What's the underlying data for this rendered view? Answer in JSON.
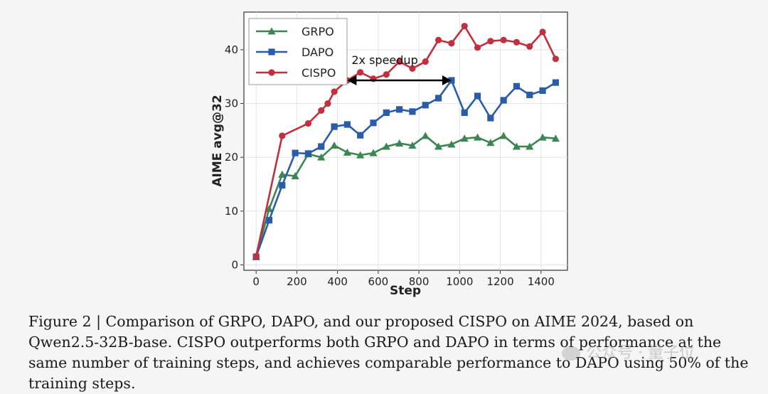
{
  "chart_data": {
    "type": "line",
    "xlabel": "Step",
    "ylabel": "AIME avg@32",
    "xlim": [
      -60,
      1530
    ],
    "ylim": [
      -1,
      47
    ],
    "xticks": [
      0,
      200,
      400,
      600,
      800,
      1000,
      1200,
      1400
    ],
    "yticks": [
      0,
      10,
      20,
      30,
      40
    ],
    "grid": true,
    "legend_position": "top-left",
    "series": [
      {
        "name": "GRPO",
        "color": "#3e8554",
        "marker": "triangle",
        "x": [
          0,
          64,
          128,
          192,
          256,
          320,
          384,
          448,
          512,
          576,
          640,
          704,
          768,
          832,
          896,
          960,
          1024,
          1088,
          1152,
          1216,
          1280,
          1344,
          1408,
          1472
        ],
        "y": [
          1.5,
          10.4,
          16.8,
          16.5,
          20.6,
          20.0,
          22.2,
          20.9,
          20.4,
          20.8,
          22.0,
          22.6,
          22.2,
          24.0,
          22.0,
          22.4,
          23.5,
          23.7,
          22.7,
          24.0,
          22.0,
          22.0,
          23.7,
          23.5
        ]
      },
      {
        "name": "DAPO",
        "color": "#2a5caa",
        "marker": "square",
        "x": [
          0,
          64,
          128,
          192,
          256,
          320,
          384,
          448,
          512,
          576,
          640,
          704,
          768,
          832,
          896,
          960,
          1024,
          1088,
          1152,
          1216,
          1280,
          1344,
          1408,
          1472
        ],
        "y": [
          1.5,
          8.3,
          14.8,
          20.8,
          20.7,
          22.0,
          25.7,
          26.1,
          24.1,
          26.4,
          28.3,
          28.9,
          28.5,
          29.7,
          31.0,
          34.3,
          28.3,
          31.4,
          27.3,
          30.6,
          33.2,
          31.6,
          32.4,
          33.9
        ]
      },
      {
        "name": "CISPO",
        "color": "#c0303f",
        "marker": "circle",
        "x": [
          0,
          128,
          256,
          320,
          352,
          384,
          448,
          512,
          576,
          640,
          704,
          768,
          832,
          896,
          960,
          1024,
          1088,
          1152,
          1216,
          1280,
          1344,
          1408,
          1472
        ],
        "y": [
          1.6,
          24.0,
          26.3,
          28.7,
          30.0,
          32.2,
          34.3,
          35.8,
          34.6,
          35.4,
          37.8,
          36.5,
          37.8,
          41.8,
          41.2,
          44.4,
          40.4,
          41.6,
          41.8,
          41.4,
          40.6,
          43.3,
          38.3
        ]
      }
    ],
    "annotation": {
      "text": "2x speedup",
      "arrow_from_x": 448,
      "arrow_to_x": 960,
      "arrow_y": 34.3
    }
  },
  "caption": "Figure 2 | Comparison of GRPO, DAPO, and our proposed CISPO on AIME 2024, based on Qwen2.5-32B-base. CISPO outperforms both GRPO and DAPO in terms of performance at the same number of training steps, and achieves comparable performance to DAPO using 50% of the training steps.",
  "watermark": "公众号 · 量子位"
}
